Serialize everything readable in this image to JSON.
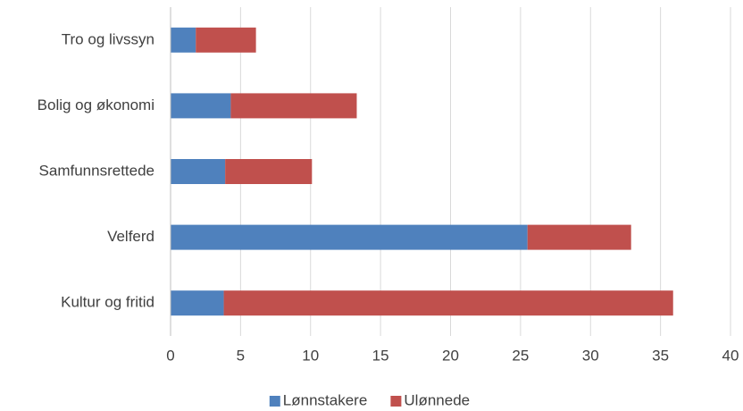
{
  "chart_data": {
    "type": "stacked_barh",
    "categories": [
      "Tro og livssyn",
      "Bolig og økonomi",
      "Samfunnsrettede",
      "Velferd",
      "Kultur og fritid"
    ],
    "series": [
      {
        "name": "Lønnstakere",
        "color": "#4f81bd",
        "values": [
          1.8,
          4.3,
          3.9,
          25.5,
          3.8
        ]
      },
      {
        "name": "Ulønnede",
        "color": "#c0504d",
        "values": [
          4.3,
          9.0,
          6.2,
          7.4,
          32.1
        ]
      }
    ],
    "xlim": [
      0,
      40
    ],
    "xticks": [
      0,
      5,
      10,
      15,
      20,
      25,
      30,
      35,
      40
    ],
    "grid": true,
    "legend": "bottom"
  }
}
